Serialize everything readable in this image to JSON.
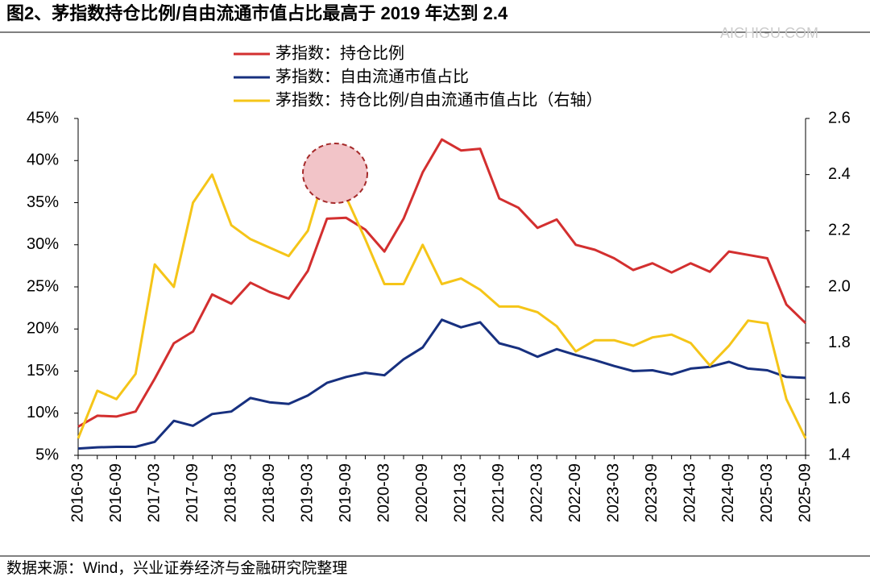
{
  "chart_data": {
    "type": "line",
    "title": "图2、茅指数持仓比例/自由流通市值占比最高于 2019 年达到 2.4",
    "source": "数据来源：Wind，兴业证券经济与金融研究院整理",
    "watermark": "AICHIGU.COM",
    "legend": "top",
    "categories": [
      "2016-03",
      null,
      "2016-09",
      null,
      "2017-03",
      null,
      "2017-09",
      null,
      "2018-03",
      null,
      "2018-09",
      null,
      "2019-03",
      null,
      "2019-09",
      null,
      "2020-03",
      null,
      "2020-09",
      null,
      "2021-03",
      null,
      "2021-09",
      null,
      "2022-03",
      null,
      "2022-09",
      null,
      "2023-03",
      null,
      "2023-09",
      null,
      "2024-03",
      null,
      "2024-09",
      null,
      "2025-03",
      null,
      "2025-09"
    ],
    "series": [
      {
        "name": "茅指数：持仓比例",
        "color": "#d32f2f",
        "values": [
          8.4,
          9.7,
          9.6,
          10.2,
          14.1,
          18.3,
          19.7,
          24.1,
          23.0,
          25.5,
          24.4,
          23.6,
          26.9,
          33.1,
          33.2,
          31.8,
          29.2,
          33.1,
          38.6,
          42.5,
          41.2,
          41.4,
          35.5,
          34.4,
          32.0,
          33.0,
          30.0,
          29.4,
          28.4,
          27.0,
          27.8,
          26.7,
          27.8,
          26.8,
          29.2,
          28.8,
          28.4,
          22.9,
          20.7
        ]
      },
      {
        "name": "茅指数：自由流通市值占比",
        "color": "#17307f",
        "values": [
          5.8,
          5.95,
          6.0,
          6.0,
          6.6,
          9.1,
          8.5,
          9.9,
          10.2,
          11.8,
          11.3,
          11.1,
          12.1,
          13.6,
          14.3,
          14.8,
          14.5,
          16.4,
          17.8,
          21.1,
          20.2,
          20.8,
          18.3,
          17.7,
          16.7,
          17.6,
          16.9,
          16.3,
          15.6,
          15.0,
          15.1,
          14.6,
          15.3,
          15.5,
          16.1,
          15.3,
          15.1,
          14.3,
          14.2
        ]
      },
      {
        "name": "茅指数：持仓比例/自由流通市值占比（右轴）",
        "color": "#f5c518",
        "axis": "y2",
        "values": [
          1.46,
          1.63,
          1.6,
          1.69,
          2.08,
          2.0,
          2.3,
          2.4,
          2.22,
          2.17,
          2.14,
          2.11,
          2.2,
          2.43,
          2.32,
          2.17,
          2.01,
          2.01,
          2.15,
          2.01,
          2.03,
          1.99,
          1.93,
          1.93,
          1.91,
          1.86,
          1.77,
          1.81,
          1.81,
          1.79,
          1.82,
          1.83,
          1.8,
          1.72,
          1.79,
          1.88,
          1.87,
          1.6,
          1.46
        ]
      }
    ],
    "ylim": [
      5,
      45
    ],
    "yticks": [
      {
        "value": 5,
        "label": "5%"
      },
      {
        "value": 10,
        "label": "10%"
      },
      {
        "value": 15,
        "label": "15%"
      },
      {
        "value": 20,
        "label": "20%"
      },
      {
        "value": 25,
        "label": "25%"
      },
      {
        "value": 30,
        "label": "30%"
      },
      {
        "value": 35,
        "label": "35%"
      },
      {
        "value": 40,
        "label": "40%"
      },
      {
        "value": 45,
        "label": "45%"
      }
    ],
    "y2lim": [
      1.4,
      2.6
    ],
    "y2ticks": [
      1.4,
      1.6,
      1.8,
      {
        "value": 2,
        "label": "2.0"
      },
      2.2,
      2.4,
      2.6
    ]
  }
}
